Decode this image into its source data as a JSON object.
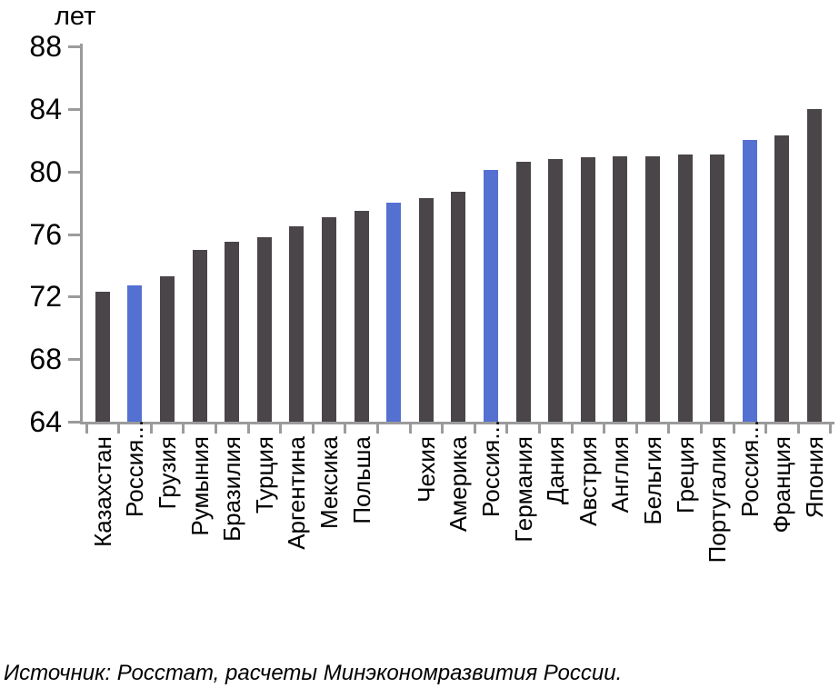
{
  "unit_label": "лет",
  "source_note": "Источник: Росстат, расчеты Минэкономразвития России.",
  "colors": {
    "bar_default": "#4a4549",
    "bar_highlight": "#5471d2",
    "axis": "#9b9b9b",
    "text": "#000000"
  },
  "chart_data": {
    "type": "bar",
    "title": "",
    "ylabel": "лет",
    "xlabel": "",
    "ylim": [
      64,
      88
    ],
    "yticks": [
      64,
      68,
      72,
      76,
      80,
      84,
      88
    ],
    "grid": false,
    "legend_position": "none",
    "categories": [
      "Казахстан",
      "Россия...",
      "Грузия",
      "Румыния",
      "Бразилия",
      "Турция",
      "Аргентина",
      "Мексика",
      "Польша",
      "",
      "Чехия",
      "Америка",
      "Россия...",
      "Германия",
      "Дания",
      "Австрия",
      "Англия",
      "Бельгия",
      "Греция",
      "Португалия",
      "Россия...",
      "Франция",
      "Япония"
    ],
    "values": [
      72.3,
      72.7,
      73.3,
      75.0,
      75.5,
      75.8,
      76.5,
      77.1,
      77.5,
      78.0,
      78.3,
      78.7,
      80.1,
      80.6,
      80.8,
      80.9,
      81.0,
      81.0,
      81.1,
      81.1,
      82.0,
      82.3,
      84.0
    ],
    "highlighted_indices": [
      1,
      9,
      12,
      20
    ],
    "highlight_meaning": "Россия"
  }
}
